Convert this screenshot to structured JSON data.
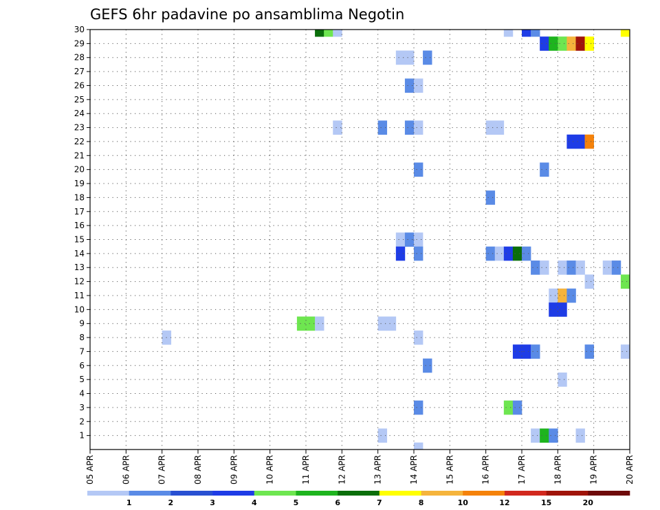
{
  "chart_data": {
    "type": "heatmap",
    "title": "GEFS 6hr padavine po ansamblima Negotin",
    "xlabel": "",
    "ylabel": "",
    "x_tick_labels": [
      "05 APR",
      "06 APR",
      "07 APR",
      "08 APR",
      "09 APR",
      "10 APR",
      "11 APR",
      "12 APR",
      "13 APR",
      "14 APR",
      "15 APR",
      "16 APR",
      "17 APR",
      "18 APR",
      "19 APR",
      "20 APR"
    ],
    "xlim": [
      0,
      60
    ],
    "y_tick_labels": [
      "1",
      "2",
      "3",
      "4",
      "5",
      "6",
      "7",
      "8",
      "9",
      "10",
      "11",
      "12",
      "13",
      "14",
      "15",
      "16",
      "17",
      "18",
      "19",
      "20",
      "21",
      "22",
      "23",
      "24",
      "25",
      "26",
      "27",
      "28",
      "29",
      "30"
    ],
    "ylim": [
      0,
      30
    ],
    "grid": "dotted",
    "legend": {
      "placement": "bottom",
      "labels": [
        "1",
        "2",
        "3",
        "4",
        "5",
        "6",
        "7",
        "8",
        "10",
        "12",
        "15",
        "20"
      ],
      "colors": [
        "#b4c8f5",
        "#5a8be6",
        "#2850d2",
        "#1e3ce6",
        "#6ee650",
        "#1eb41e",
        "#0a6e0a",
        "#ffff00",
        "#f5b43c",
        "#f5820a",
        "#d2281e",
        "#a0140a",
        "#6e0a0a"
      ]
    },
    "cells": [
      {
        "member": 30,
        "step": 25,
        "color": "#0a6e0a"
      },
      {
        "member": 30,
        "step": 26,
        "color": "#6ee650"
      },
      {
        "member": 30,
        "step": 27,
        "color": "#b4c8f5"
      },
      {
        "member": 30,
        "step": 46,
        "color": "#b4c8f5"
      },
      {
        "member": 30,
        "step": 48,
        "color": "#1e3ce6"
      },
      {
        "member": 30,
        "step": 49,
        "color": "#5a8be6"
      },
      {
        "member": 30,
        "step": 59,
        "color": "#ffff00"
      },
      {
        "member": 29,
        "step": 50,
        "color": "#1e3ce6"
      },
      {
        "member": 29,
        "step": 51,
        "color": "#1eb41e"
      },
      {
        "member": 29,
        "step": 52,
        "color": "#6ee650"
      },
      {
        "member": 29,
        "step": 53,
        "color": "#f5b43c"
      },
      {
        "member": 29,
        "step": 54,
        "color": "#a0140a"
      },
      {
        "member": 29,
        "step": 55,
        "color": "#ffff00"
      },
      {
        "member": 28,
        "step": 34,
        "color": "#b4c8f5"
      },
      {
        "member": 28,
        "step": 35,
        "color": "#b4c8f5"
      },
      {
        "member": 28,
        "step": 37,
        "color": "#5a8be6"
      },
      {
        "member": 26,
        "step": 35,
        "color": "#5a8be6"
      },
      {
        "member": 26,
        "step": 36,
        "color": "#b4c8f5"
      },
      {
        "member": 23,
        "step": 27,
        "color": "#b4c8f5"
      },
      {
        "member": 23,
        "step": 32,
        "color": "#5a8be6"
      },
      {
        "member": 23,
        "step": 35,
        "color": "#5a8be6"
      },
      {
        "member": 23,
        "step": 36,
        "color": "#b4c8f5"
      },
      {
        "member": 23,
        "step": 44,
        "color": "#b4c8f5"
      },
      {
        "member": 23,
        "step": 45,
        "color": "#b4c8f5"
      },
      {
        "member": 22,
        "step": 53,
        "color": "#1e3ce6"
      },
      {
        "member": 22,
        "step": 54,
        "color": "#1e3ce6"
      },
      {
        "member": 22,
        "step": 55,
        "color": "#f5820a"
      },
      {
        "member": 20,
        "step": 36,
        "color": "#5a8be6"
      },
      {
        "member": 20,
        "step": 50,
        "color": "#5a8be6"
      },
      {
        "member": 18,
        "step": 44,
        "color": "#5a8be6"
      },
      {
        "member": 15,
        "step": 34,
        "color": "#b4c8f5"
      },
      {
        "member": 15,
        "step": 35,
        "color": "#5a8be6"
      },
      {
        "member": 15,
        "step": 36,
        "color": "#b4c8f5"
      },
      {
        "member": 14,
        "step": 34,
        "color": "#1e3ce6"
      },
      {
        "member": 14,
        "step": 36,
        "color": "#5a8be6"
      },
      {
        "member": 14,
        "step": 44,
        "color": "#5a8be6"
      },
      {
        "member": 14,
        "step": 45,
        "color": "#b4c8f5"
      },
      {
        "member": 14,
        "step": 46,
        "color": "#1e3ce6"
      },
      {
        "member": 14,
        "step": 47,
        "color": "#0a6e0a"
      },
      {
        "member": 14,
        "step": 48,
        "color": "#5a8be6"
      },
      {
        "member": 13,
        "step": 49,
        "color": "#5a8be6"
      },
      {
        "member": 13,
        "step": 50,
        "color": "#b4c8f5"
      },
      {
        "member": 13,
        "step": 52,
        "color": "#b4c8f5"
      },
      {
        "member": 13,
        "step": 53,
        "color": "#5a8be6"
      },
      {
        "member": 13,
        "step": 54,
        "color": "#b4c8f5"
      },
      {
        "member": 13,
        "step": 57,
        "color": "#b4c8f5"
      },
      {
        "member": 13,
        "step": 58,
        "color": "#5a8be6"
      },
      {
        "member": 12,
        "step": 55,
        "color": "#b4c8f5"
      },
      {
        "member": 12,
        "step": 59,
        "color": "#6ee650"
      },
      {
        "member": 11,
        "step": 51,
        "color": "#b4c8f5"
      },
      {
        "member": 11,
        "step": 52,
        "color": "#f5b43c"
      },
      {
        "member": 11,
        "step": 53,
        "color": "#5a8be6"
      },
      {
        "member": 10,
        "step": 51,
        "color": "#1e3ce6"
      },
      {
        "member": 10,
        "step": 52,
        "color": "#1e3ce6"
      },
      {
        "member": 9,
        "step": 23,
        "color": "#6ee650"
      },
      {
        "member": 9,
        "step": 24,
        "color": "#6ee650"
      },
      {
        "member": 9,
        "step": 25,
        "color": "#b4c8f5"
      },
      {
        "member": 9,
        "step": 32,
        "color": "#b4c8f5"
      },
      {
        "member": 9,
        "step": 33,
        "color": "#b4c8f5"
      },
      {
        "member": 8,
        "step": 8,
        "color": "#b4c8f5"
      },
      {
        "member": 8,
        "step": 36,
        "color": "#b4c8f5"
      },
      {
        "member": 7,
        "step": 47,
        "color": "#1e3ce6"
      },
      {
        "member": 7,
        "step": 48,
        "color": "#1e3ce6"
      },
      {
        "member": 7,
        "step": 49,
        "color": "#5a8be6"
      },
      {
        "member": 7,
        "step": 55,
        "color": "#5a8be6"
      },
      {
        "member": 7,
        "step": 59,
        "color": "#b4c8f5"
      },
      {
        "member": 6,
        "step": 37,
        "color": "#5a8be6"
      },
      {
        "member": 5,
        "step": 52,
        "color": "#b4c8f5"
      },
      {
        "member": 3,
        "step": 36,
        "color": "#5a8be6"
      },
      {
        "member": 3,
        "step": 46,
        "color": "#6ee650"
      },
      {
        "member": 3,
        "step": 47,
        "color": "#5a8be6"
      },
      {
        "member": 1,
        "step": 32,
        "color": "#b4c8f5"
      },
      {
        "member": 1,
        "step": 49,
        "color": "#b4c8f5"
      },
      {
        "member": 1,
        "step": 50,
        "color": "#1eb41e"
      },
      {
        "member": 1,
        "step": 51,
        "color": "#5a8be6"
      },
      {
        "member": 1,
        "step": 54,
        "color": "#b4c8f5"
      },
      {
        "member": 0,
        "step": 36,
        "color": "#b4c8f5"
      }
    ]
  }
}
